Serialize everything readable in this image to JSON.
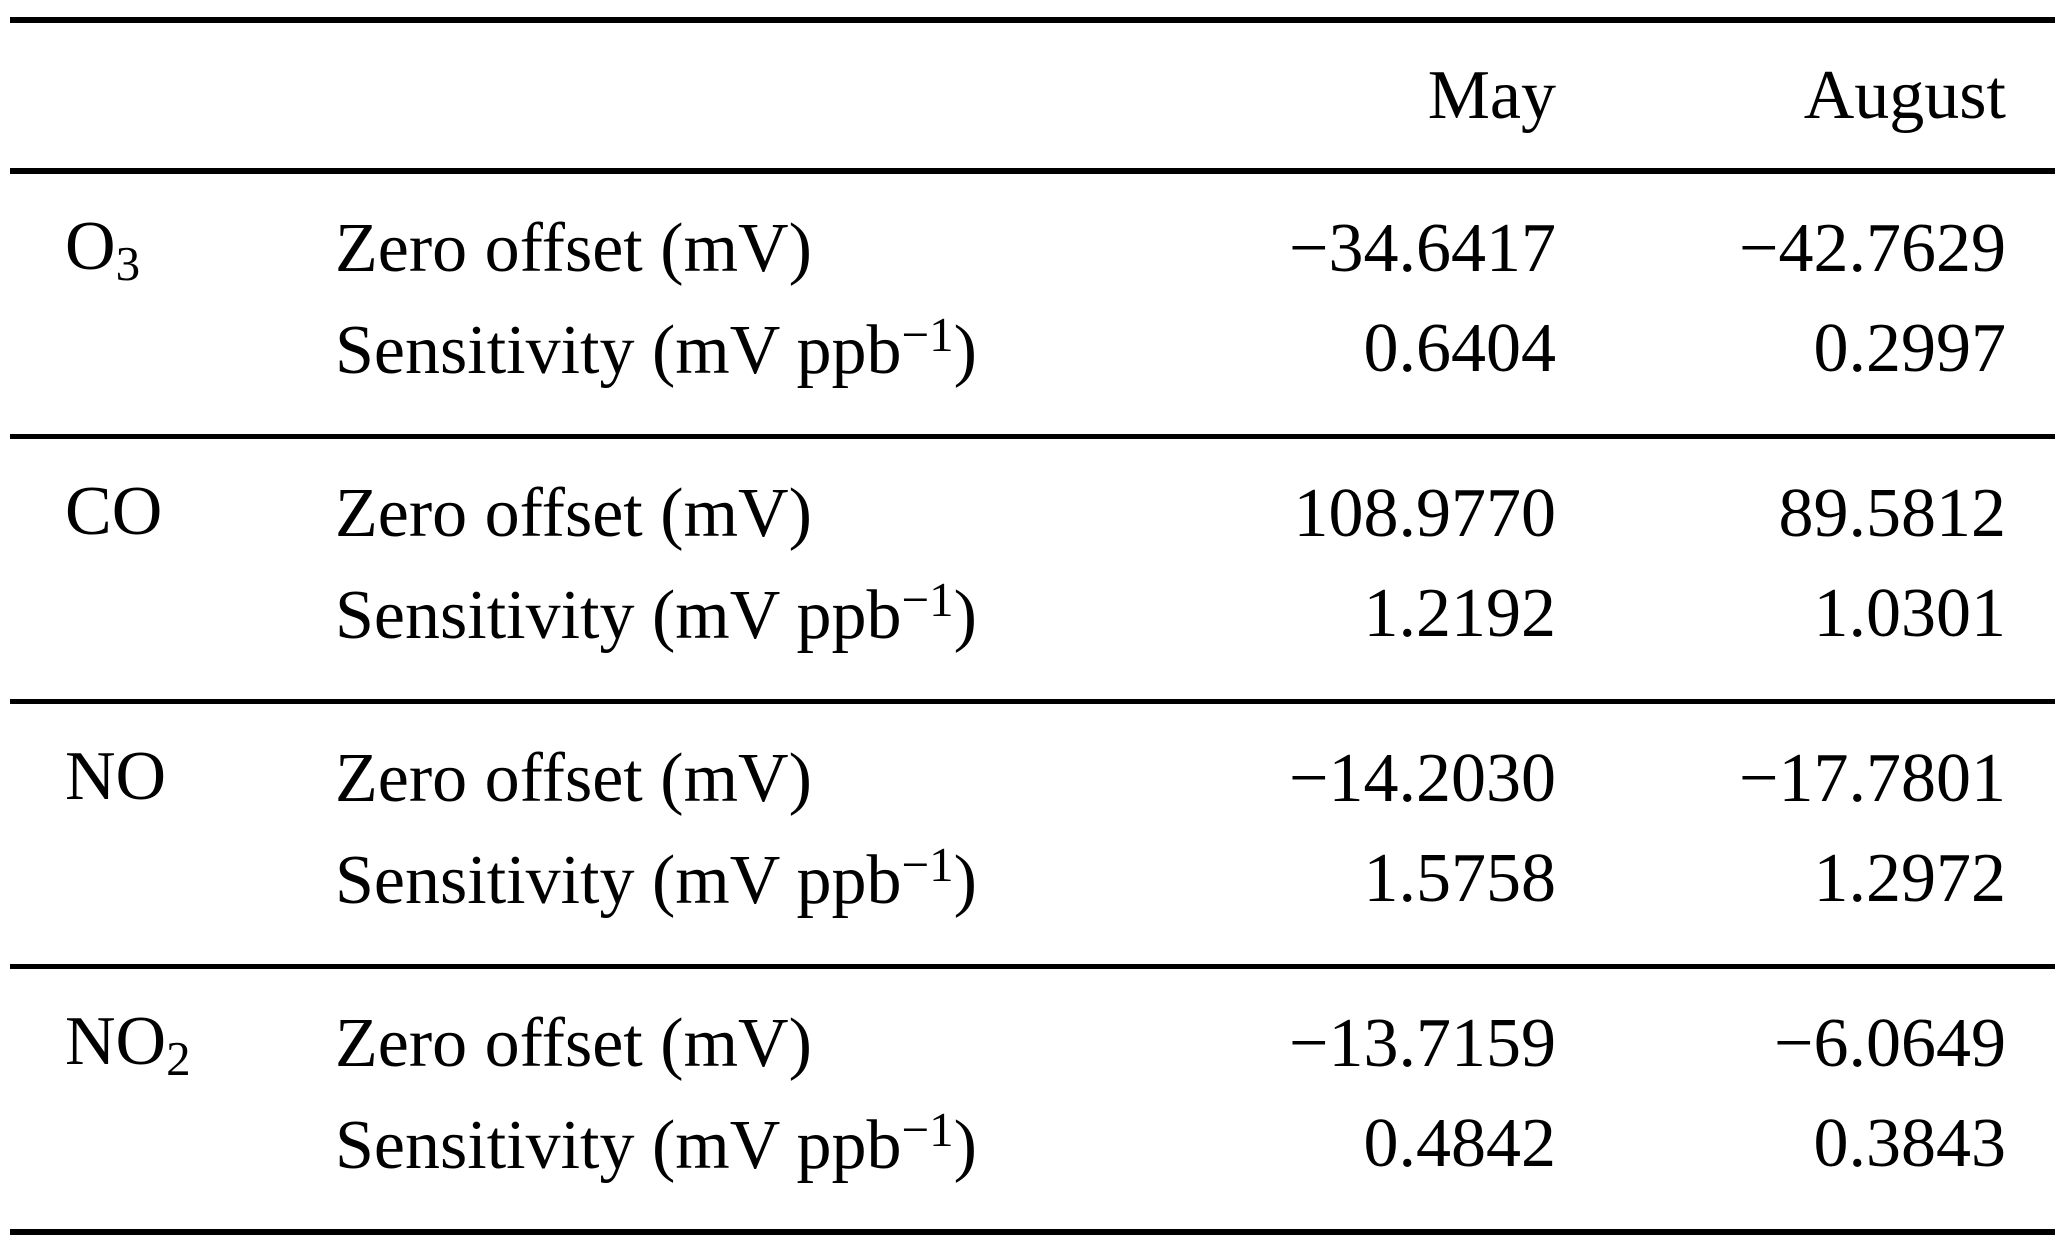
{
  "table": {
    "columns": {
      "may": "May",
      "august": "August"
    },
    "row_labels": {
      "zero_offset": "Zero offset (mV)",
      "sensitivity_pre": "Sensitivity (mV ppb",
      "sensitivity_sup": "−1",
      "sensitivity_post": ")"
    },
    "sections": [
      {
        "species_main": "O",
        "species_sub": "3",
        "zero_offset": {
          "may": "−34.6417",
          "august": "−42.7629"
        },
        "sensitivity": {
          "may": "0.6404",
          "august": "0.2997"
        }
      },
      {
        "species_main": "CO",
        "species_sub": "",
        "zero_offset": {
          "may": "108.9770",
          "august": "89.5812"
        },
        "sensitivity": {
          "may": "1.2192",
          "august": "1.0301"
        }
      },
      {
        "species_main": "NO",
        "species_sub": "",
        "zero_offset": {
          "may": "−14.2030",
          "august": "−17.7801"
        },
        "sensitivity": {
          "may": "1.5758",
          "august": "1.2972"
        }
      },
      {
        "species_main": "NO",
        "species_sub": "2",
        "zero_offset": {
          "may": "−13.7159",
          "august": "−6.0649"
        },
        "sensitivity": {
          "may": "0.4842",
          "august": "0.3843"
        }
      }
    ]
  }
}
